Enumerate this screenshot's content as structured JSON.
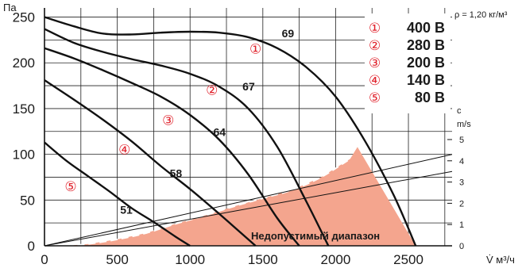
{
  "chart_data": {
    "type": "line",
    "ylabel": "Па",
    "xlabel": "V̇ м³/ч",
    "y2label_top": "c",
    "y2label_unit": "m/s",
    "density_note": "ρ = 1,20 кг/м³",
    "xlim": [
      0,
      2800
    ],
    "ylim": [
      0,
      260
    ],
    "x_ticks": [
      0,
      500,
      1000,
      1500,
      2000,
      2500
    ],
    "y_ticks": [
      0,
      50,
      100,
      150,
      200,
      250
    ],
    "y2lim": [
      0,
      5
    ],
    "y2_ticks": [
      0,
      1,
      2,
      3,
      4,
      5
    ],
    "grid": true,
    "legend": [
      {
        "marker": "①",
        "value": "400 В"
      },
      {
        "marker": "②",
        "value": "280 В"
      },
      {
        "marker": "③",
        "value": "200 В"
      },
      {
        "marker": "④",
        "value": "140 В"
      },
      {
        "marker": "⑤",
        "value": "80 В"
      }
    ],
    "series": [
      {
        "marker": "①",
        "end_label": "69",
        "x": [
          0,
          200,
          400,
          600,
          800,
          1000,
          1200,
          1400,
          1600,
          1800,
          2000,
          2200,
          2400,
          2550
        ],
        "y": [
          250,
          240,
          232,
          231,
          233,
          234,
          233,
          228,
          216,
          195,
          163,
          115,
          55,
          0
        ]
      },
      {
        "marker": "②",
        "end_label": "67",
        "x": [
          0,
          200,
          400,
          600,
          800,
          1000,
          1200,
          1400,
          1600,
          1800,
          1950
        ],
        "y": [
          237,
          222,
          212,
          204,
          197,
          188,
          174,
          150,
          108,
          48,
          0
        ]
      },
      {
        "marker": "③",
        "end_label": "64",
        "x": [
          0,
          200,
          400,
          600,
          800,
          1000,
          1200,
          1400,
          1600,
          1750
        ],
        "y": [
          216,
          205,
          192,
          178,
          163,
          143,
          116,
          78,
          30,
          0
        ]
      },
      {
        "marker": "④",
        "end_label": "58",
        "x": [
          0,
          200,
          400,
          600,
          800,
          1000,
          1200,
          1300,
          1450
        ],
        "y": [
          181,
          160,
          138,
          114,
          87,
          62,
          35,
          21,
          0
        ]
      },
      {
        "marker": "⑤",
        "end_label": "51",
        "x": [
          0,
          150,
          300,
          450,
          600,
          750,
          900,
          1000
        ],
        "y": [
          113,
          93,
          76,
          59,
          41,
          26,
          10,
          0
        ]
      }
    ],
    "system_lines": [
      {
        "x": [
          0,
          2800
        ],
        "y2": [
          0,
          4.3
        ]
      },
      {
        "x": [
          0,
          2800
        ],
        "y2": [
          0,
          3.5
        ]
      }
    ],
    "curve_labels": [
      {
        "text": "51",
        "x": 520,
        "y": 35
      },
      {
        "text": "58",
        "x": 860,
        "y": 75
      },
      {
        "text": "64",
        "x": 1160,
        "y": 120
      },
      {
        "text": "67",
        "x": 1360,
        "y": 170
      },
      {
        "text": "69",
        "x": 1630,
        "y": 228
      }
    ],
    "markers": [
      {
        "text": "⑤",
        "x": 180,
        "y": 60
      },
      {
        "text": "④",
        "x": 550,
        "y": 100
      },
      {
        "text": "③",
        "x": 850,
        "y": 132
      },
      {
        "text": "②",
        "x": 1150,
        "y": 165
      },
      {
        "text": "①",
        "x": 1450,
        "y": 210
      }
    ],
    "forbidden_region": {
      "label": "Недопустимый диапазон",
      "color": "#f4a58e",
      "x": [
        150,
        300,
        500,
        700,
        900,
        1100,
        1300,
        1500,
        1700,
        1900,
        2100,
        2150,
        2550
      ],
      "y": [
        0,
        2,
        7,
        14,
        24,
        33,
        43,
        52,
        61,
        75,
        95,
        108,
        0
      ]
    }
  }
}
